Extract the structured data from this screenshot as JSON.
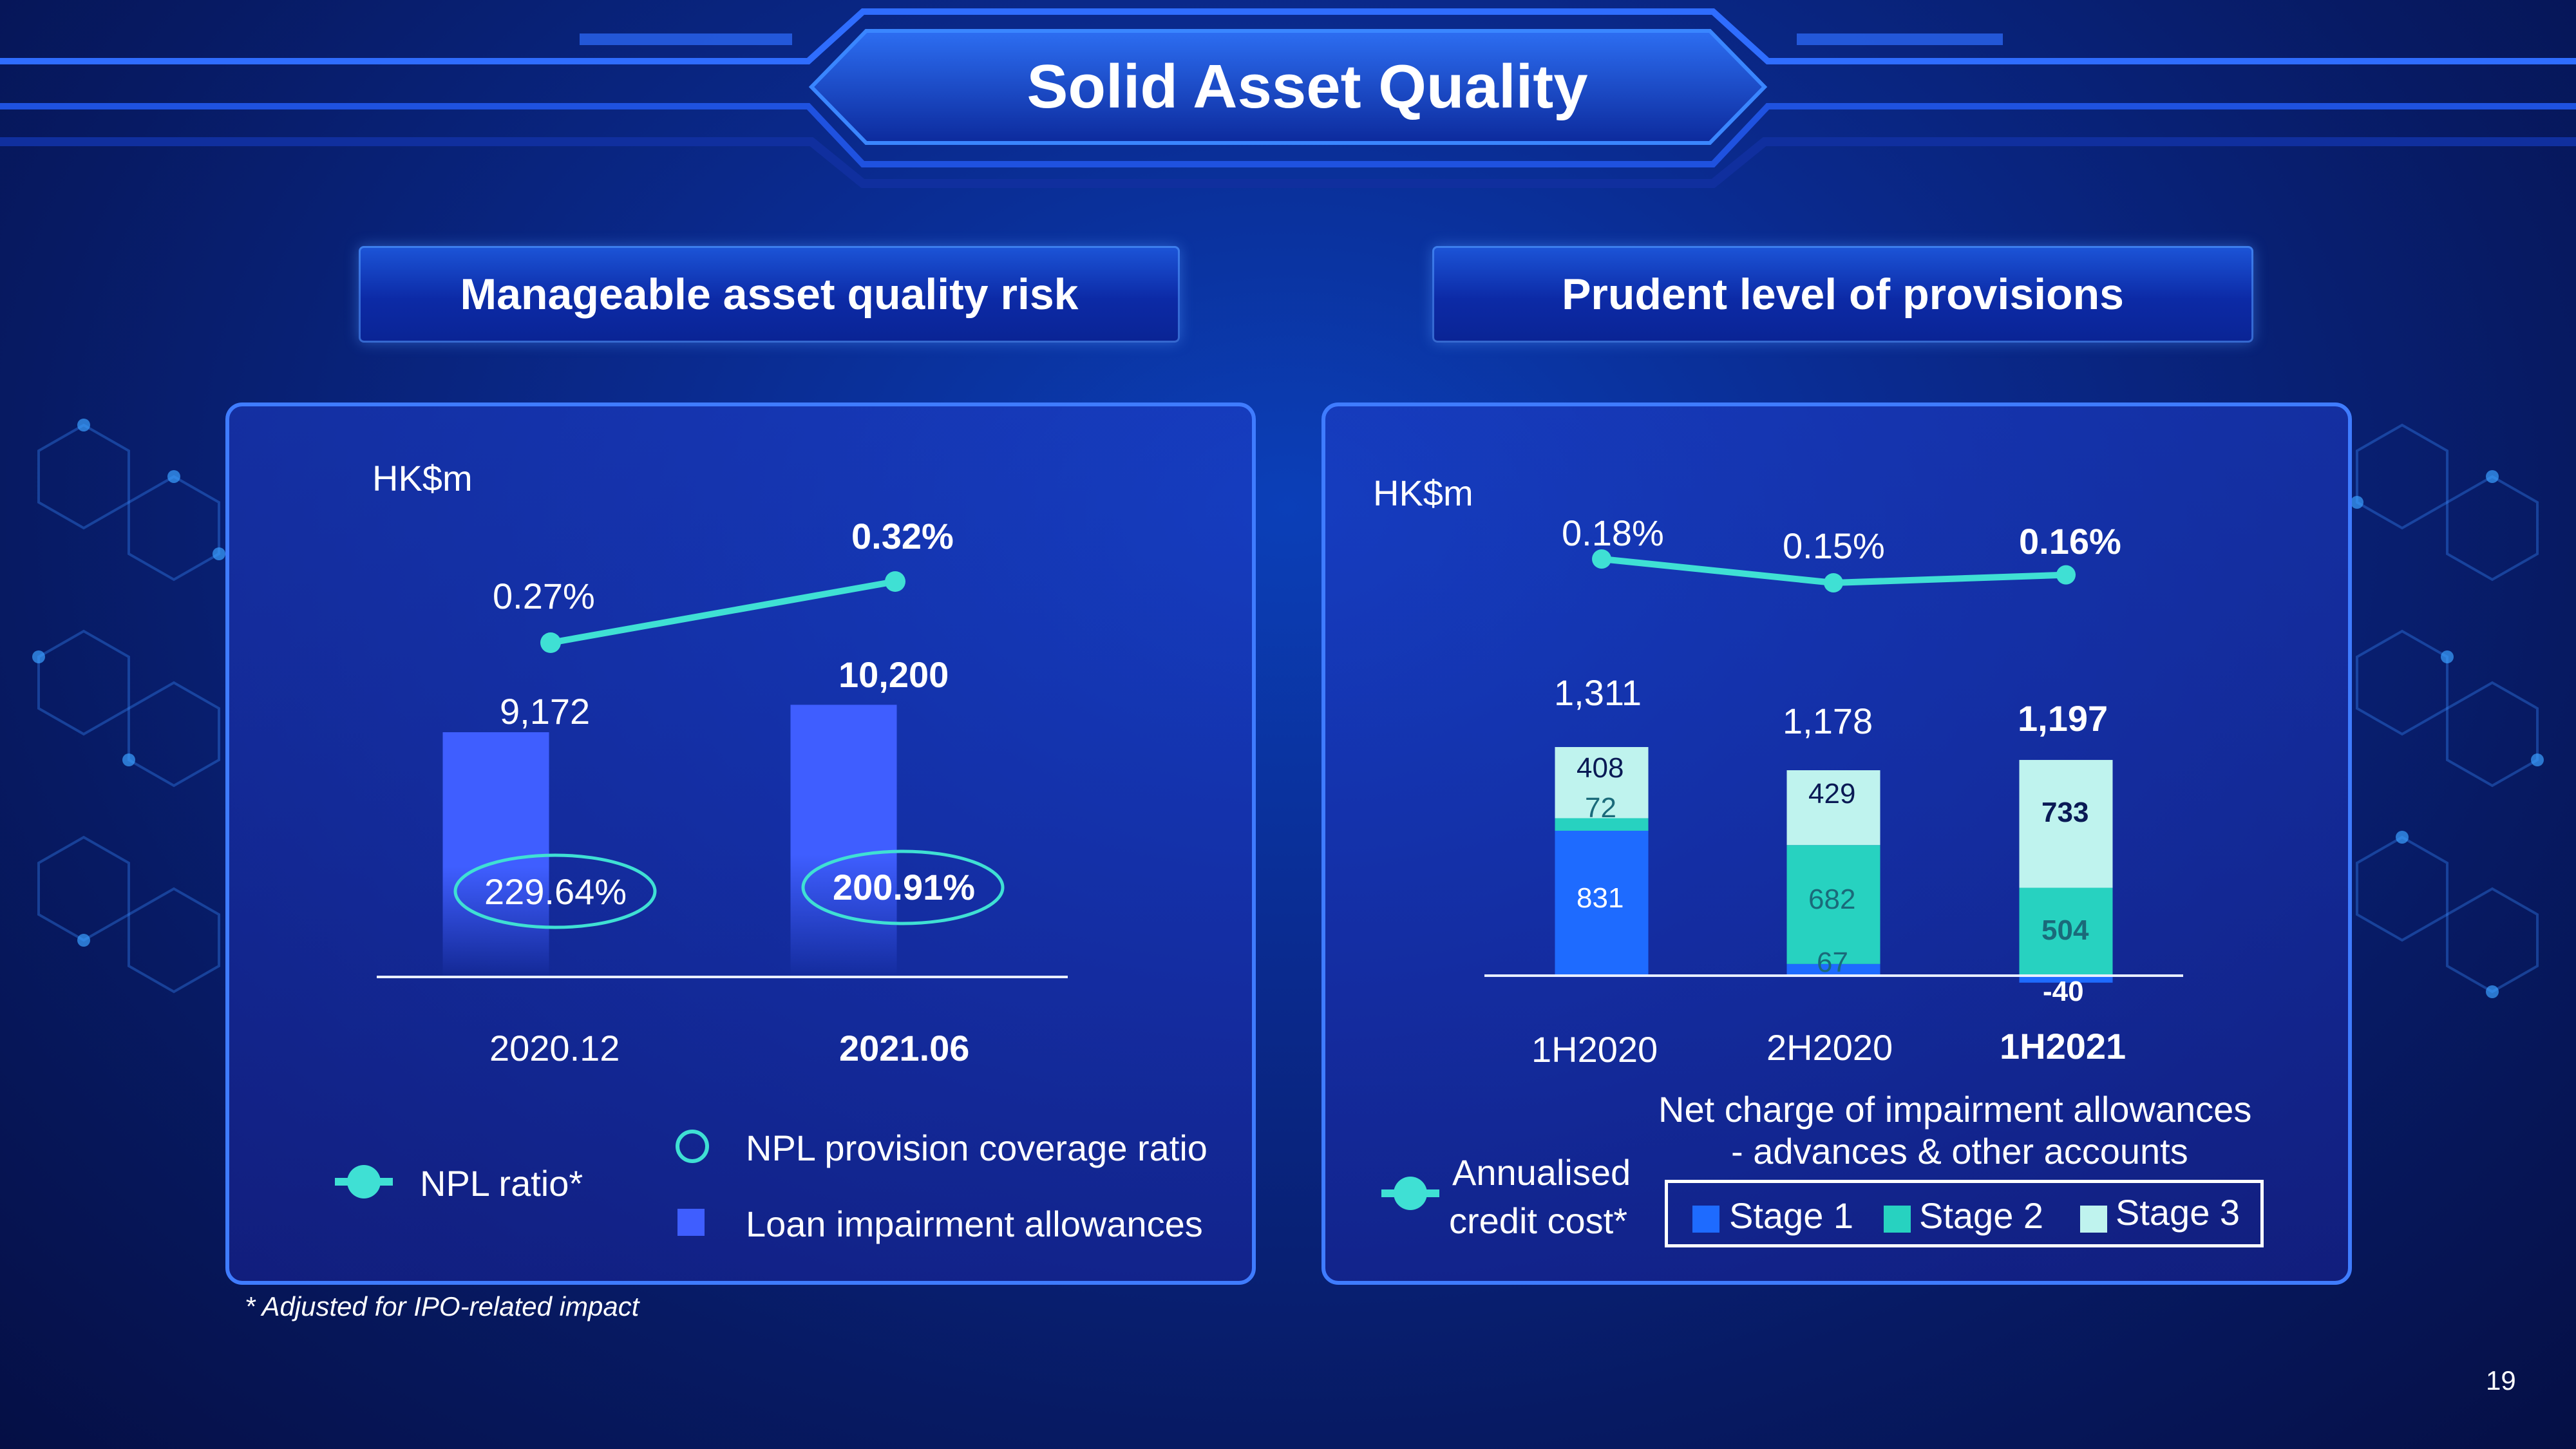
{
  "title": "Solid Asset Quality",
  "left_subtitle": "Manageable asset quality risk",
  "right_subtitle": "Prudent level of provisions",
  "footnote": "* Adjusted for IPO-related impact",
  "page_number": "19",
  "colors": {
    "stage1": "#1e6bff",
    "stage2": "#27d2c0",
    "stage3": "#bff3ee",
    "line": "#3fe0d4",
    "bar_left": "#3f5eff"
  },
  "chart_data": [
    {
      "type": "bar",
      "unit_label": "HK$m",
      "categories": [
        "2020.12",
        "2021.06"
      ],
      "series": [
        {
          "name": "Loan impairment allowances",
          "values": [
            9172,
            10200
          ],
          "labels": [
            "9,172",
            "10,200"
          ]
        },
        {
          "name": "NPL provision coverage ratio",
          "values": [
            229.64,
            200.91
          ],
          "labels": [
            "229.64%",
            "200.91%"
          ]
        },
        {
          "name": "NPL ratio*",
          "values": [
            0.27,
            0.32
          ],
          "labels": [
            "0.27%",
            "0.32%"
          ]
        }
      ],
      "legend": [
        "NPL ratio*",
        "NPL provision coverage ratio",
        "Loan impairment allowances"
      ]
    },
    {
      "type": "bar",
      "stacked": true,
      "unit_label": "HK$m",
      "categories": [
        "1H2020",
        "2H2020",
        "1H2021"
      ],
      "totals": [
        1311,
        1178,
        1197
      ],
      "total_labels": [
        "1,311",
        "1,178",
        "1,197"
      ],
      "series": [
        {
          "name": "Stage 1",
          "values": [
            831,
            67,
            -40
          ],
          "labels": [
            "831",
            "67",
            "-40"
          ]
        },
        {
          "name": "Stage 2",
          "values": [
            72,
            682,
            504
          ],
          "labels": [
            "72",
            "682",
            "504"
          ]
        },
        {
          "name": "Stage 3",
          "values": [
            408,
            429,
            733
          ],
          "labels": [
            "408",
            "429",
            "733"
          ]
        },
        {
          "name": "Annualised credit cost*",
          "values": [
            0.18,
            0.15,
            0.16
          ],
          "labels": [
            "0.18%",
            "0.15%",
            "0.16%"
          ]
        }
      ],
      "legend_title": [
        "Net charge of impairment allowances",
        "- advances & other accounts"
      ],
      "line_legend": [
        "Annualised",
        "credit cost*"
      ]
    }
  ]
}
